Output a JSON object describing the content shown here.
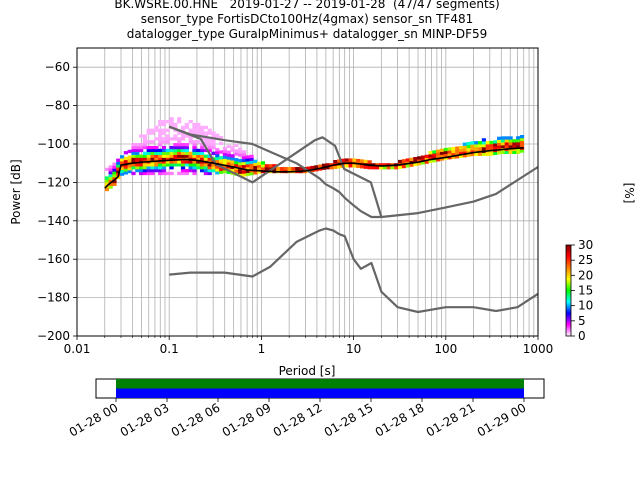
{
  "title": {
    "line1": "BK.WSRE.00.HNE   2019-01-27 -- 2019-01-28  (47/47 segments)",
    "line2": "sensor_type FortisDCto100Hz(4gmax) sensor_sn TF481",
    "line3": "datalogger_type GuralpMinimus+ datalogger_sn MINP-DF59"
  },
  "chart_data": [
    {
      "type": "heatmap",
      "xlabel": "Period [s]",
      "ylabel": "Power [dB]",
      "xscale": "log",
      "xlim": [
        0.01,
        1000
      ],
      "ylim": [
        -200,
        -50
      ],
      "x_ticks": [
        {
          "value": 0.01,
          "label": "0.01"
        },
        {
          "value": 0.1,
          "label": "0.1"
        },
        {
          "value": 1,
          "label": "1"
        },
        {
          "value": 10,
          "label": "10"
        },
        {
          "value": 100,
          "label": "100"
        },
        {
          "value": 1000,
          "label": "1000"
        }
      ],
      "y_ticks": [
        {
          "value": -60,
          "label": "−60"
        },
        {
          "value": -80,
          "label": "−80"
        },
        {
          "value": -100,
          "label": "−100"
        },
        {
          "value": -120,
          "label": "−120"
        },
        {
          "value": -140,
          "label": "−140"
        },
        {
          "value": -160,
          "label": "−160"
        },
        {
          "value": -180,
          "label": "−180"
        },
        {
          "value": -200,
          "label": "−200"
        }
      ],
      "grid": true,
      "colorbar": {
        "label": "[%]",
        "range": [
          0,
          30
        ],
        "ticks": [
          {
            "value": 0,
            "label": "0"
          },
          {
            "value": 5,
            "label": "5"
          },
          {
            "value": 10,
            "label": "10"
          },
          {
            "value": 15,
            "label": "15"
          },
          {
            "value": 20,
            "label": "20"
          },
          {
            "value": 25,
            "label": "25"
          },
          {
            "value": 30,
            "label": "30"
          }
        ],
        "colors": [
          "#ffffff",
          "#ff00ff",
          "#0000ff",
          "#00ffff",
          "#00ff00",
          "#ffff00",
          "#ff8000",
          "#ff0000",
          "#800000"
        ]
      },
      "density": {
        "x": [
          0.02,
          0.025,
          0.03,
          0.04,
          0.05,
          0.06,
          0.07,
          0.08,
          0.1,
          0.12,
          0.15,
          0.2,
          0.25,
          0.3,
          0.4,
          0.5,
          0.6,
          0.8,
          1,
          1.5,
          2,
          3,
          4,
          5,
          6,
          8,
          10,
          15,
          20,
          30,
          50,
          80,
          100,
          150,
          200,
          300,
          400,
          500,
          600,
          700
        ],
        "y_low": [
          -125,
          -122,
          -118,
          -116,
          -116,
          -116,
          -116,
          -116,
          -116,
          -116,
          -116,
          -116,
          -116,
          -116,
          -115,
          -116,
          -117,
          -116,
          -115,
          -115,
          -115,
          -115,
          -114,
          -113,
          -113,
          -112,
          -112,
          -113,
          -113,
          -113,
          -111,
          -109,
          -108,
          -107,
          -106,
          -106,
          -105,
          -105,
          -105,
          -104
        ],
        "y_high": [
          -113,
          -110,
          -106,
          -100,
          -96,
          -93,
          -90,
          -88,
          -87,
          -87,
          -88,
          -90,
          -92,
          -94,
          -97,
          -100,
          -103,
          -106,
          -110,
          -112,
          -113,
          -113,
          -112,
          -111,
          -110,
          -108,
          -108,
          -110,
          -110,
          -110,
          -107,
          -104,
          -103,
          -101,
          -99,
          -98,
          -97,
          -96,
          -96,
          -96
        ],
        "mode_db": [
          -123,
          -120,
          -112,
          -110,
          -110,
          -109,
          -109,
          -109,
          -108,
          -108,
          -108,
          -109,
          -110,
          -111,
          -112,
          -113,
          -114,
          -114,
          -114,
          -114,
          -114,
          -114,
          -113,
          -112,
          -111,
          -110,
          -110,
          -111,
          -111,
          -111,
          -109,
          -107,
          -106,
          -105,
          -104,
          -103,
          -102,
          -102,
          -102,
          -101
        ]
      },
      "mode_line": {
        "x": [
          0.02,
          0.022,
          0.025,
          0.028,
          0.03,
          0.04,
          0.05,
          0.07,
          0.1,
          0.15,
          0.2,
          0.3,
          0.5,
          0.7,
          1,
          1.5,
          2,
          3,
          4,
          5,
          6,
          8,
          10,
          15,
          20,
          30,
          50,
          70,
          100,
          150,
          200,
          300,
          500,
          700
        ],
        "y": [
          -123,
          -121,
          -119,
          -117,
          -111,
          -110,
          -109.5,
          -109,
          -108.5,
          -108,
          -108.5,
          -110,
          -112,
          -113.5,
          -114,
          -114.5,
          -114.5,
          -114,
          -113,
          -112,
          -111,
          -110,
          -110,
          -111,
          -111.5,
          -111,
          -109.5,
          -108,
          -107,
          -105.5,
          -104.5,
          -103.5,
          -102.5,
          -102
        ]
      },
      "noise_models": [
        {
          "x": [
            0.1,
            0.17,
            0.4,
            0.8,
            1.24,
            2.4,
            4.3,
            5,
            6,
            7,
            8,
            10,
            12,
            15.6,
            20,
            50,
            100,
            200,
            350,
            1000
          ],
          "y": [
            -91,
            -95,
            -98,
            -100,
            -104,
            -110,
            -118,
            -121,
            -123,
            -125,
            -128,
            -132,
            -135,
            -138,
            -138,
            -136,
            -133,
            -130,
            -126,
            -112
          ]
        },
        {
          "x": [
            0.1,
            0.17,
            0.4,
            0.8,
            1.24,
            2.4,
            4.3,
            5,
            6,
            7,
            8,
            10,
            12,
            15.6,
            20,
            30,
            50,
            100,
            200,
            350,
            600,
            1000
          ],
          "y": [
            -168,
            -167,
            -167,
            -169,
            -164,
            -151,
            -145,
            -144,
            -145,
            -147,
            -148,
            -160,
            -165,
            -162,
            -177,
            -185,
            -187.5,
            -185,
            -185,
            -187,
            -185,
            -178
          ]
        },
        {
          "x": [
            0.1,
            0.22,
            0.32,
            0.8,
            3.8,
            4.6,
            6.3,
            7.9,
            15.4,
            20
          ],
          "y": [
            -91,
            -97.4,
            -110.5,
            -120,
            -98,
            -96.5,
            -101,
            -113,
            -120,
            -138
          ]
        }
      ]
    },
    {
      "type": "timeline",
      "x_ticks": [
        "01-28 00",
        "01-28 03",
        "01-28 06",
        "01-28 09",
        "01-28 12",
        "01-28 15",
        "01-28 18",
        "01-28 21",
        "01-29 00"
      ],
      "coverage_start": "01-28 00",
      "coverage_end": "01-29 00",
      "bands": [
        {
          "color": "#008000"
        },
        {
          "color": "#0000ff"
        }
      ]
    }
  ]
}
